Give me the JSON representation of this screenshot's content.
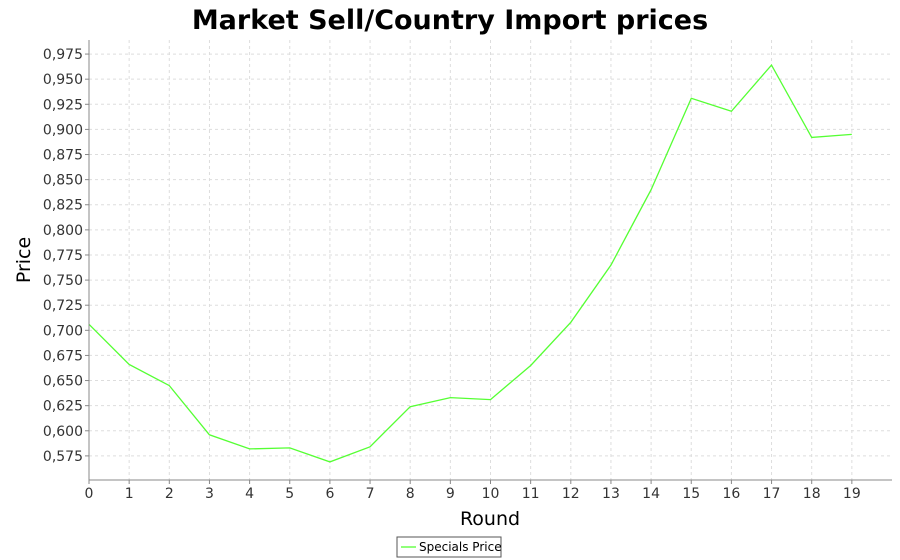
{
  "chart_data": {
    "type": "line",
    "title": "Market Sell/Country Import prices",
    "xlabel": "Round",
    "ylabel": "Price",
    "x": [
      0,
      1,
      2,
      3,
      4,
      5,
      6,
      7,
      8,
      9,
      10,
      11,
      12,
      13,
      14,
      15,
      16,
      17,
      18,
      19
    ],
    "x_tick_labels": [
      "0",
      "1",
      "2",
      "3",
      "4",
      "5",
      "6",
      "7",
      "8",
      "9",
      "10",
      "11",
      "12",
      "13",
      "14",
      "15",
      "16",
      "17",
      "18",
      "19"
    ],
    "xlim": [
      0,
      20
    ],
    "ylim": [
      0.551,
      0.989
    ],
    "y_ticks": [
      0.575,
      0.6,
      0.625,
      0.65,
      0.675,
      0.7,
      0.725,
      0.75,
      0.775,
      0.8,
      0.825,
      0.85,
      0.875,
      0.9,
      0.925,
      0.95,
      0.975
    ],
    "y_tick_labels": [
      "0,575",
      "0,600",
      "0,625",
      "0,650",
      "0,675",
      "0,700",
      "0,725",
      "0,750",
      "0,775",
      "0,800",
      "0,825",
      "0,850",
      "0,875",
      "0,900",
      "0,925",
      "0,950",
      "0,975"
    ],
    "grid": true,
    "legend_position": "bottom-center",
    "series": [
      {
        "name": "Specials Price",
        "color": "#55ff33",
        "values": [
          0.706,
          0.666,
          0.645,
          0.596,
          0.582,
          0.583,
          0.569,
          0.584,
          0.624,
          0.633,
          0.631,
          0.665,
          0.708,
          0.765,
          0.84,
          0.931,
          0.918,
          0.964,
          0.892,
          0.895
        ]
      }
    ]
  }
}
